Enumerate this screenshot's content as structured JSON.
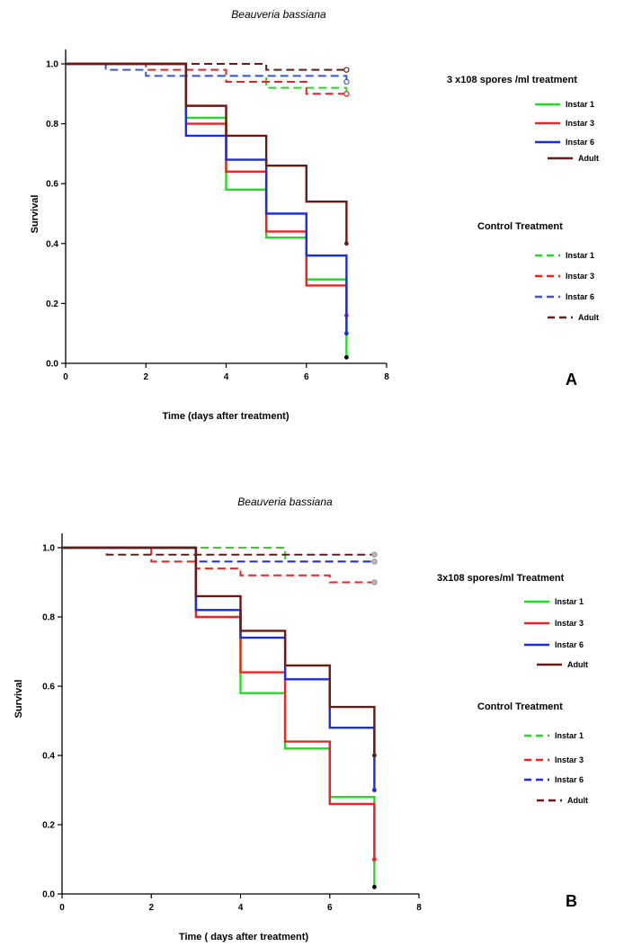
{
  "chart_data": [
    {
      "type": "line",
      "panel_label": "A",
      "title": "Beauveria bassiana",
      "xlabel": "Time (days after treatment)",
      "ylabel": "Survival",
      "xlim": [
        0,
        8
      ],
      "ylim": [
        0,
        1
      ],
      "xticks": [
        "0",
        "2",
        "4",
        "6",
        "8"
      ],
      "yticks": [
        "0.0",
        "0.2",
        "0.4",
        "0.6",
        "0.8",
        "1.0"
      ],
      "legend_treatment_title": "3 x108 spores /ml treatment",
      "legend_control_title": "Control Treatment",
      "series": [
        {
          "name": "Instar 1",
          "group": "treatment",
          "color": "#22dd22",
          "dash": false,
          "x": [
            0,
            3,
            4,
            5,
            6,
            7
          ],
          "y": [
            1.0,
            0.82,
            0.58,
            0.42,
            0.28,
            0.02
          ]
        },
        {
          "name": "Instar 3",
          "group": "treatment",
          "color": "#ee2222",
          "dash": false,
          "x": [
            0,
            3,
            4,
            5,
            6,
            7
          ],
          "y": [
            1.0,
            0.8,
            0.64,
            0.44,
            0.26,
            0.16
          ]
        },
        {
          "name": "Instar 6",
          "group": "treatment",
          "color": "#1a2ee0",
          "dash": false,
          "x": [
            0,
            3,
            4,
            5,
            6,
            7
          ],
          "y": [
            1.0,
            0.76,
            0.68,
            0.5,
            0.36,
            0.1
          ]
        },
        {
          "name": "Adult",
          "group": "treatment",
          "color": "#6b1a12",
          "dash": false,
          "x": [
            0,
            3,
            4,
            5,
            6,
            7
          ],
          "y": [
            1.0,
            0.86,
            0.76,
            0.66,
            0.54,
            0.4
          ]
        },
        {
          "name": "Instar 1",
          "group": "control",
          "color": "#22dd22",
          "dash": true,
          "x": [
            0,
            3,
            5,
            7
          ],
          "y": [
            1.0,
            0.96,
            0.92,
            0.9
          ]
        },
        {
          "name": "Instar 3",
          "group": "control",
          "color": "#ee2222",
          "dash": true,
          "x": [
            0,
            2,
            4,
            6,
            7
          ],
          "y": [
            1.0,
            0.98,
            0.94,
            0.9,
            0.9
          ]
        },
        {
          "name": "Instar 6",
          "group": "control",
          "color": "#3a55e0",
          "dash": true,
          "x": [
            0,
            1,
            2,
            7
          ],
          "y": [
            1.0,
            0.98,
            0.96,
            0.94
          ]
        },
        {
          "name": "Adult",
          "group": "control",
          "color": "#6b1a12",
          "dash": true,
          "x": [
            0,
            5,
            7
          ],
          "y": [
            1.0,
            0.98,
            0.98
          ]
        }
      ]
    },
    {
      "type": "line",
      "panel_label": "B",
      "title": "Beauveria bassiana",
      "xlabel": "Time ( days after treatment)",
      "ylabel": "Survival",
      "xlim": [
        0,
        8
      ],
      "ylim": [
        0,
        1
      ],
      "xticks": [
        "0",
        "2",
        "4",
        "6",
        "8"
      ],
      "yticks": [
        "0.0",
        "0.2",
        "0.4",
        "0.6",
        "0.8",
        "1.0"
      ],
      "legend_treatment_title": "3x108 spores/ml Treatment",
      "legend_control_title": "Control Treatment",
      "series": [
        {
          "name": "Instar 1",
          "group": "treatment",
          "color": "#22dd22",
          "dash": false,
          "x": [
            0,
            3,
            4,
            5,
            6,
            7
          ],
          "y": [
            1.0,
            0.82,
            0.58,
            0.42,
            0.28,
            0.02
          ]
        },
        {
          "name": "Instar 3",
          "group": "treatment",
          "color": "#ee2222",
          "dash": false,
          "x": [
            0,
            3,
            4,
            5,
            6,
            7
          ],
          "y": [
            1.0,
            0.8,
            0.64,
            0.44,
            0.26,
            0.1
          ]
        },
        {
          "name": "Instar 6",
          "group": "treatment",
          "color": "#1a2ee0",
          "dash": false,
          "x": [
            0,
            3,
            4,
            5,
            6,
            7
          ],
          "y": [
            1.0,
            0.82,
            0.74,
            0.62,
            0.48,
            0.3
          ]
        },
        {
          "name": "Adult",
          "group": "treatment",
          "color": "#6b1a12",
          "dash": false,
          "x": [
            0,
            3,
            4,
            5,
            6,
            7
          ],
          "y": [
            1.0,
            0.86,
            0.76,
            0.66,
            0.54,
            0.4
          ]
        },
        {
          "name": "Instar 1",
          "group": "control",
          "color": "#22dd22",
          "dash": true,
          "x": [
            0,
            5,
            7
          ],
          "y": [
            1.0,
            0.96,
            0.96
          ]
        },
        {
          "name": "Instar 3",
          "group": "control",
          "color": "#ee2222",
          "dash": true,
          "x": [
            0,
            2,
            3,
            4,
            6,
            7
          ],
          "y": [
            1.0,
            0.96,
            0.94,
            0.92,
            0.9,
            0.9
          ]
        },
        {
          "name": "Instar 6",
          "group": "control",
          "color": "#1a2ee0",
          "dash": true,
          "x": [
            0,
            3,
            7
          ],
          "y": [
            1.0,
            0.96,
            0.96
          ]
        },
        {
          "name": "Adult",
          "group": "control",
          "color": "#6b1a12",
          "dash": true,
          "x": [
            0,
            1,
            7
          ],
          "y": [
            1.0,
            0.98,
            0.98
          ]
        }
      ]
    }
  ]
}
